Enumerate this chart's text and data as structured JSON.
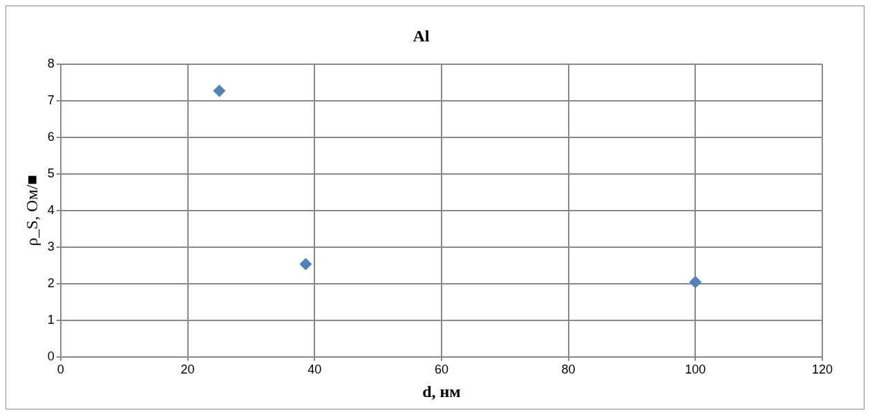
{
  "chart_data": {
    "type": "scatter",
    "title": "Al",
    "xlabel": "d, нм",
    "ylabel": "ρ_S, Ом/■",
    "x": [
      25,
      38.6,
      100
    ],
    "series": [
      {
        "color": "#4f81bd",
        "values": [
          7.27,
          2.53,
          2.04
        ]
      }
    ],
    "xlim": [
      0,
      120
    ],
    "xticks": [
      0,
      20,
      40,
      60,
      80,
      100,
      120
    ],
    "ylim": [
      0,
      8
    ],
    "yticks": [
      0,
      1,
      2,
      3,
      4,
      5,
      6,
      7,
      8
    ],
    "grid": true,
    "marker": "diamond",
    "legend": false
  }
}
